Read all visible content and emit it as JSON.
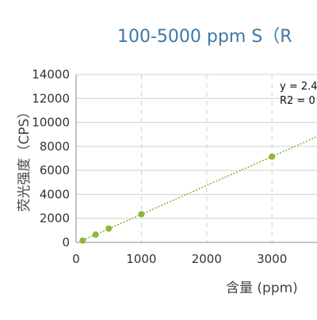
{
  "chart_data": {
    "type": "scatter",
    "title": "100-5000 ppm S（R",
    "xlabel": "含量 (ppm)",
    "ylabel": "荧光强度（CPS）",
    "xlim": [
      0,
      5000
    ],
    "ylim": [
      0,
      14000
    ],
    "x_ticks": [
      "0",
      "1000",
      "2000",
      "3000"
    ],
    "y_ticks": [
      "0",
      "2000",
      "4000",
      "6000",
      "8000",
      "10000",
      "12000",
      "14000"
    ],
    "series": [
      {
        "points": [
          {
            "x": 100,
            "y": 150
          },
          {
            "x": 300,
            "y": 650
          },
          {
            "x": 500,
            "y": 1150
          },
          {
            "x": 1000,
            "y": 2350
          },
          {
            "x": 3000,
            "y": 7150
          }
        ],
        "color": "#8ab83a"
      }
    ],
    "trendline": {
      "style": "dotted",
      "color": "#8ab83a",
      "equation_label": "y = 2.4",
      "r2_label": "R2 = 0"
    },
    "grid": {
      "horizontal": true,
      "vertical": "dashed"
    },
    "colors": {
      "title": "#3c78a8",
      "grid": "#d0d0d0",
      "axis": "#888888"
    }
  }
}
